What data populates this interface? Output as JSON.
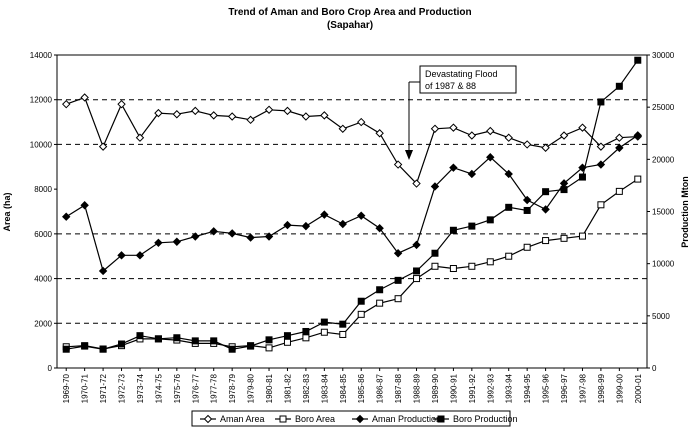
{
  "chart_data": {
    "type": "line",
    "title": "Trend of Aman and Boro Crop Area and Production",
    "subtitle": "(Sapahar)",
    "ylabel": "Area (ha)",
    "y2label": "Production Mton",
    "ylim": [
      0,
      14000
    ],
    "y2lim": [
      0,
      30000
    ],
    "yticks": [
      "0",
      "2000",
      "4000",
      "6000",
      "8000",
      "10000",
      "12000",
      "14000"
    ],
    "y2ticks": [
      "0",
      "5000",
      "10000",
      "15000",
      "20000",
      "25000",
      "30000"
    ],
    "grid": "dashed at 2000, 4000, 6000, 10000, 12000",
    "categories": [
      "1969-70",
      "1970-71",
      "1971-72",
      "1972-73",
      "1973-74",
      "1974-75",
      "1975-76",
      "1976-77",
      "1977-78",
      "1978-79",
      "1979-80",
      "1980-81",
      "1981-82",
      "1982-83",
      "1983-84",
      "1984-85",
      "1985-86",
      "1986-87",
      "1987-88",
      "1988-89",
      "1989-90",
      "1990-91",
      "1991-92",
      "1992-93",
      "1993-94",
      "1994-95",
      "1995-96",
      "1996-97",
      "1997-98",
      "1998-99",
      "1999-00",
      "2000-01"
    ],
    "series": [
      {
        "name": "Aman Area",
        "axis": "left",
        "marker": "diamond-open",
        "values": [
          11800,
          12100,
          9900,
          11800,
          10300,
          11400,
          11350,
          11500,
          11300,
          11250,
          11100,
          11550,
          11500,
          11250,
          11300,
          10700,
          11000,
          10500,
          9100,
          8250,
          10700,
          10750,
          10400,
          10600,
          10300,
          10000,
          9850,
          10400,
          10750,
          9900,
          10300,
          10350
        ]
      },
      {
        "name": "Boro Area",
        "axis": "left",
        "marker": "square-open",
        "values": [
          950,
          1000,
          850,
          1000,
          1300,
          1300,
          1250,
          1100,
          1100,
          950,
          1000,
          900,
          1150,
          1350,
          1600,
          1500,
          2400,
          2900,
          3100,
          4000,
          4550,
          4450,
          4550,
          4750,
          5000,
          5400,
          5700,
          5800,
          5900,
          7300,
          7900,
          8450
        ]
      },
      {
        "name": "Aman Production",
        "axis": "right",
        "marker": "diamond-filled",
        "values": [
          14500,
          15600,
          9300,
          10800,
          10800,
          12000,
          12100,
          12600,
          13100,
          12900,
          12500,
          12600,
          13700,
          13600,
          14700,
          13800,
          14600,
          13400,
          11000,
          11800,
          17400,
          19200,
          18600,
          20200,
          18600,
          16100,
          15200,
          17700,
          19200,
          19500,
          21100,
          22300
        ]
      },
      {
        "name": "Boro Production",
        "axis": "right",
        "marker": "square-filled",
        "values": [
          1800,
          2100,
          1800,
          2300,
          3100,
          2800,
          2900,
          2600,
          2600,
          1800,
          2100,
          2700,
          3100,
          3500,
          4400,
          4200,
          6400,
          7500,
          8400,
          9300,
          11000,
          13200,
          13600,
          14200,
          15400,
          15100,
          16900,
          17100,
          18300,
          25500,
          27000,
          29500
        ]
      }
    ],
    "annotation": {
      "lines": [
        "Devastating Flood",
        "of 1987 & 88"
      ],
      "points_to": "1988-89"
    },
    "legend_position": "bottom"
  }
}
